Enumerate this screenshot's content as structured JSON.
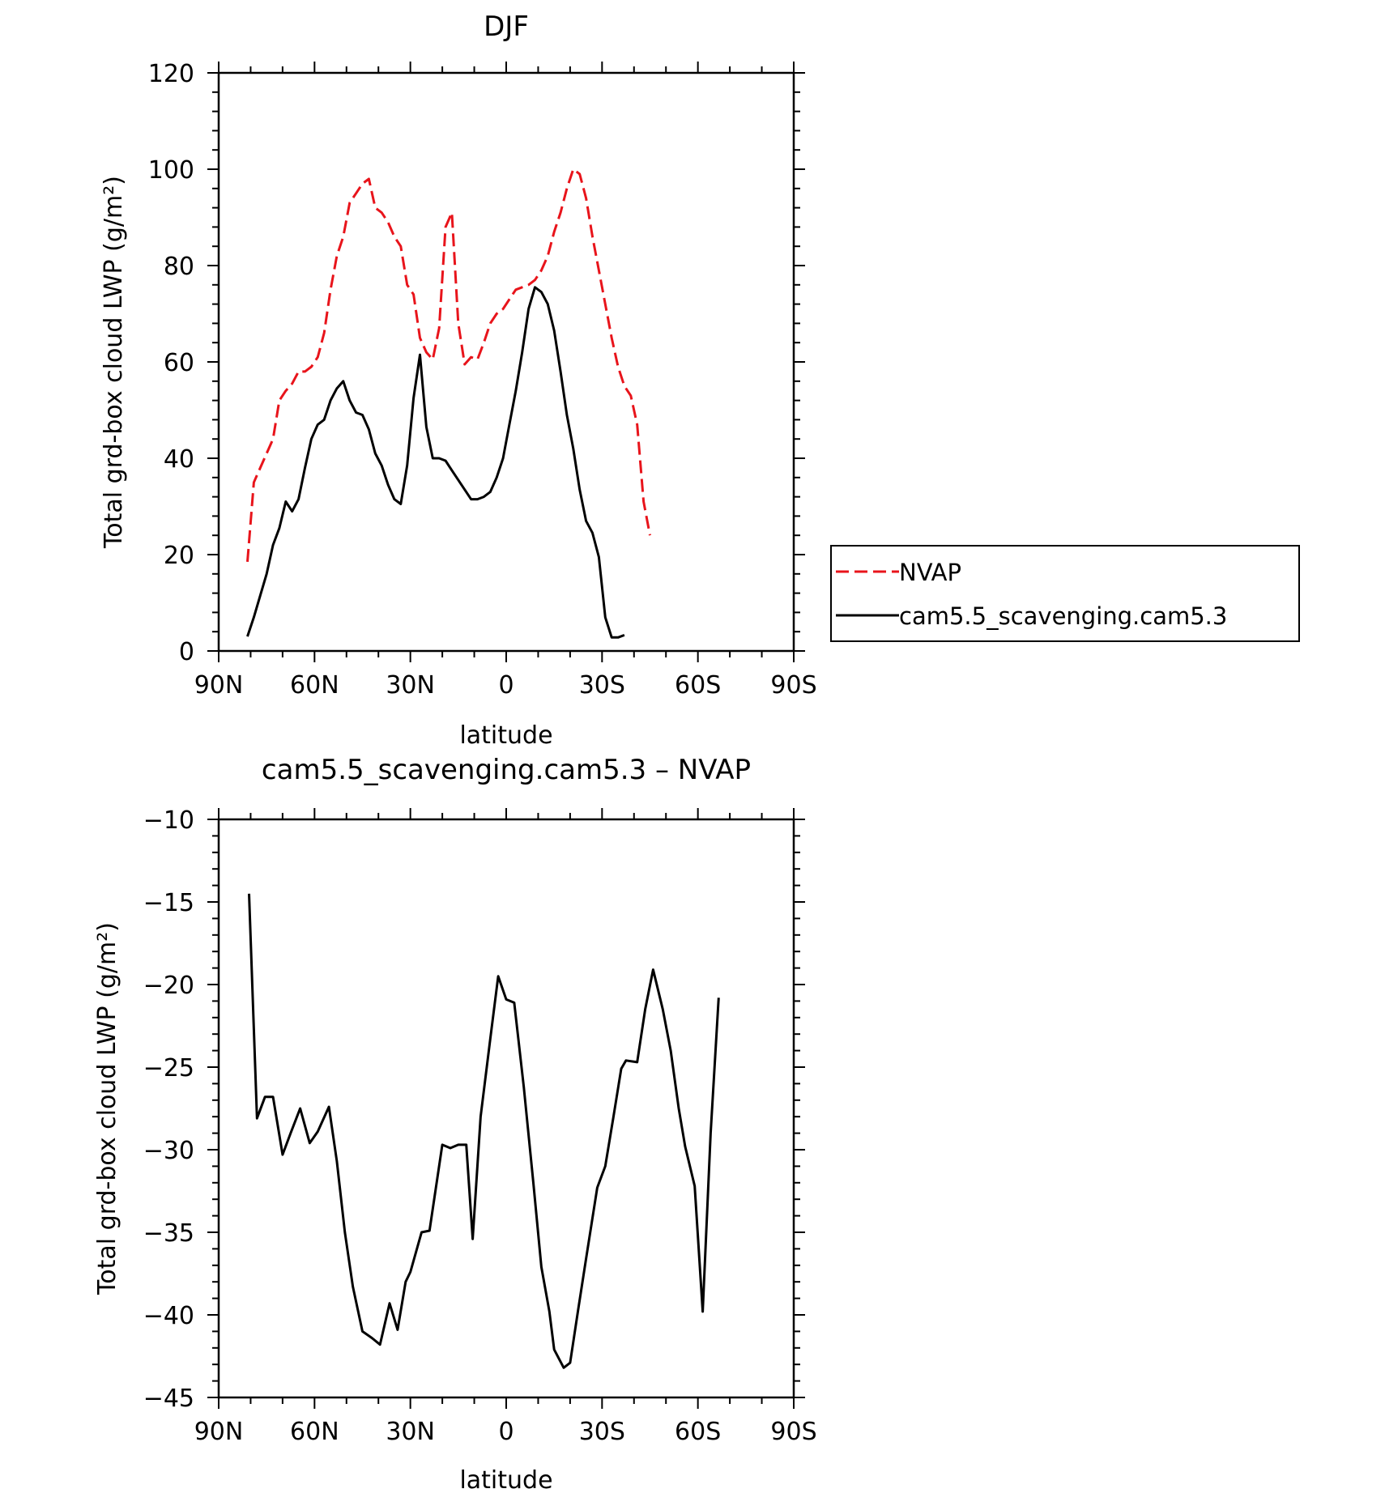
{
  "chart_data": [
    {
      "type": "line",
      "title": "DJF",
      "xlabel": "latitude",
      "ylabel": "Total grd-box cloud LWP (g/m²)",
      "xlim": [
        -90,
        90
      ],
      "ylim": [
        0,
        120
      ],
      "xticks": [
        -90,
        -60,
        -30,
        0,
        30,
        60,
        90
      ],
      "xtick_labels": [
        "90N",
        "60N",
        "30N",
        "0",
        "30S",
        "60S",
        "90S"
      ],
      "yticks": [
        0,
        20,
        40,
        60,
        80,
        100,
        120
      ],
      "ytick_labels": [
        "0",
        "20",
        "40",
        "60",
        "80",
        "100",
        "120"
      ],
      "legend_position": "right",
      "grid": false,
      "series": [
        {
          "name": "NVAP",
          "color": "#e8141b",
          "dash": "dashed",
          "x": [
            -81,
            -79,
            -77,
            -75,
            -73,
            -71,
            -69,
            -67,
            -65,
            -63,
            -61,
            -59,
            -57,
            -55,
            -53,
            -51,
            -49,
            -47,
            -45,
            -43,
            -41,
            -39,
            -37,
            -35,
            -33,
            -31,
            -29,
            -27,
            -25,
            -23,
            -21,
            -19,
            -17,
            -15,
            -13,
            -11,
            -9,
            -7,
            -5,
            -3,
            -1,
            1,
            3,
            5,
            7,
            9,
            11,
            13,
            15,
            17,
            19,
            21,
            23,
            25,
            27,
            29,
            31,
            33,
            35,
            37,
            39,
            41,
            43,
            45,
            47,
            49,
            51,
            53,
            55,
            57,
            59,
            61,
            63,
            65,
            67,
            69,
            71,
            73,
            75,
            77
          ],
          "y": [
            18.5,
            35,
            38,
            41,
            44,
            52,
            54,
            55.5,
            58,
            58,
            59,
            61,
            66,
            75,
            82,
            86,
            93,
            95,
            97,
            98,
            92,
            91,
            89,
            86,
            84,
            76,
            74,
            65,
            62,
            60.5,
            67,
            88,
            91,
            68,
            59.5,
            61,
            60.5,
            64,
            68,
            70,
            71,
            73,
            75,
            75.5,
            76,
            77,
            79,
            82,
            87,
            91,
            96,
            100,
            99,
            94,
            86,
            79,
            72,
            65,
            59,
            55,
            53,
            47,
            31,
            24,
            null,
            null,
            null,
            null,
            null,
            null,
            null,
            null,
            null,
            null,
            null,
            null,
            null,
            null,
            null,
            null
          ]
        },
        {
          "name": "cam5.5_scavenging.cam5.3",
          "color": "#000000",
          "dash": "solid",
          "x": [
            -81,
            -79,
            -77,
            -75,
            -73,
            -71,
            -69,
            -67,
            -65,
            -63,
            -61,
            -59,
            -57,
            -55,
            -53,
            -51,
            -49,
            -47,
            -45,
            -43,
            -41,
            -39,
            -37,
            -35,
            -33,
            -31,
            -29,
            -27,
            -25,
            -23,
            -21,
            -19,
            -17,
            -15,
            -13,
            -11,
            -9,
            -7,
            -5,
            -3,
            -1,
            1,
            3,
            5,
            7,
            9,
            11,
            13,
            15,
            17,
            19,
            21,
            23,
            25,
            27,
            29,
            31,
            33,
            35,
            37,
            39,
            41,
            43,
            45,
            47,
            49,
            51,
            53,
            55,
            57,
            59,
            61,
            63,
            65,
            67,
            69,
            71,
            73,
            75,
            77
          ],
          "y": [
            3,
            7,
            11.5,
            16,
            22,
            25.5,
            31,
            29,
            31.5,
            38,
            44,
            47,
            48,
            52,
            54.5,
            56,
            52,
            49.5,
            49,
            46,
            41,
            38.5,
            34.5,
            31.5,
            30.5,
            38.5,
            52.5,
            61.5,
            46.5,
            40,
            40,
            39.5,
            37.5,
            35.5,
            33.5,
            31.5,
            31.5,
            32,
            33,
            36,
            40,
            47,
            54,
            62,
            71,
            75.5,
            74.5,
            72,
            66.5,
            58,
            49,
            42,
            33.5,
            27,
            24.5,
            19.5,
            7,
            2.8,
            2.8,
            3.3,
            null,
            null,
            null,
            null,
            null,
            null,
            null,
            null,
            null,
            null,
            null,
            null,
            null,
            null,
            null,
            null,
            null,
            null,
            null,
            null
          ]
        }
      ]
    },
    {
      "type": "line",
      "title": "cam5.5_scavenging.cam5.3 – NVAP",
      "xlabel": "latitude",
      "ylabel": "Total grd-box cloud LWP (g/m²)",
      "xlim": [
        -90,
        90
      ],
      "ylim": [
        -45,
        -10
      ],
      "xticks": [
        -90,
        -60,
        -30,
        0,
        30,
        60,
        90
      ],
      "xtick_labels": [
        "90N",
        "60N",
        "30N",
        "0",
        "30S",
        "60S",
        "90S"
      ],
      "yticks": [
        -45,
        -40,
        -35,
        -30,
        -25,
        -20,
        -15,
        -10
      ],
      "ytick_labels": [
        "−45",
        "−40",
        "−35",
        "−30",
        "−25",
        "−20",
        "−15",
        "−10"
      ],
      "grid": false,
      "series": [
        {
          "color": "#000000",
          "dash": "solid",
          "x": [
            -80.5,
            -78,
            -75.5,
            -73,
            -70,
            -67.5,
            -64.5,
            -61.5,
            -59,
            -55.5,
            -53,
            -50.5,
            -48,
            -45,
            -42,
            -39.5,
            -36.5,
            -34,
            -31.5,
            -30,
            -26.5,
            -24,
            -20,
            -17.5,
            -15,
            -12.5,
            -10.5,
            -8,
            -5,
            -2.5,
            0,
            2.5,
            5.5,
            8.5,
            11,
            13.5,
            15,
            18,
            20,
            22.5,
            25,
            28.5,
            31,
            33.5,
            36,
            37.5,
            41,
            43.5,
            46,
            49,
            51.5,
            54,
            56,
            59,
            61.5,
            64,
            66.5,
            69,
            72.5,
            75.5,
            78
          ],
          "y": [
            -14.5,
            -28.1,
            -26.8,
            -26.8,
            -30.3,
            -29,
            -27.5,
            -29.6,
            -28.9,
            -27.4,
            -30.7,
            -35,
            -38.3,
            -41,
            -41.4,
            -41.8,
            -39.3,
            -40.9,
            -38,
            -37.4,
            -35,
            -34.9,
            -29.7,
            -29.9,
            -29.7,
            -29.7,
            -35.4,
            -28,
            -23.3,
            -19.5,
            -20.9,
            -21.1,
            -26.2,
            -32,
            -37.1,
            -39.8,
            -42.1,
            -43.2,
            -42.9,
            -39.7,
            -36.6,
            -32.3,
            -31,
            -28.1,
            -25.1,
            -24.6,
            -24.7,
            -21.5,
            -19.1,
            -21.5,
            -24,
            -27.5,
            -29.8,
            -32.2,
            -39.8,
            -29,
            -20.8,
            null,
            null,
            null,
            null
          ]
        }
      ]
    }
  ]
}
